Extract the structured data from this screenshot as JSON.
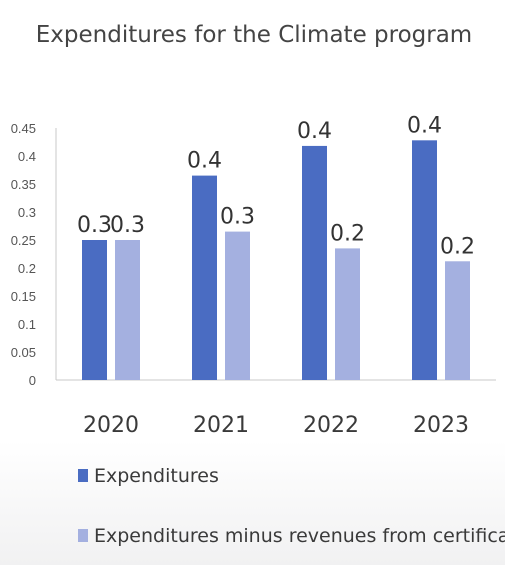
{
  "chart_data": {
    "type": "bar",
    "title": "Expenditures for the Climate program",
    "categories": [
      "2020",
      "2021",
      "2022",
      "2023"
    ],
    "series": [
      {
        "name": "Expenditures",
        "values": [
          0.25,
          0.365,
          0.418,
          0.428
        ],
        "data_labels": [
          "0.3",
          "0.4",
          "0.4",
          "0.4"
        ],
        "color": "#4a6cc2"
      },
      {
        "name": "Expenditures minus revenues from certificates",
        "values": [
          0.25,
          0.265,
          0.235,
          0.212
        ],
        "data_labels": [
          "0.3",
          "0.3",
          "0.2",
          "0.2"
        ],
        "color": "#a4b0e0"
      }
    ],
    "ylim": [
      0,
      0.45
    ],
    "yticks": [
      "0",
      "0.05",
      "0.1",
      "0.15",
      "0.2",
      "0.25",
      "0.3",
      "0.35",
      "0.4",
      "0.45"
    ],
    "grid": false,
    "legend_position": "bottom"
  }
}
